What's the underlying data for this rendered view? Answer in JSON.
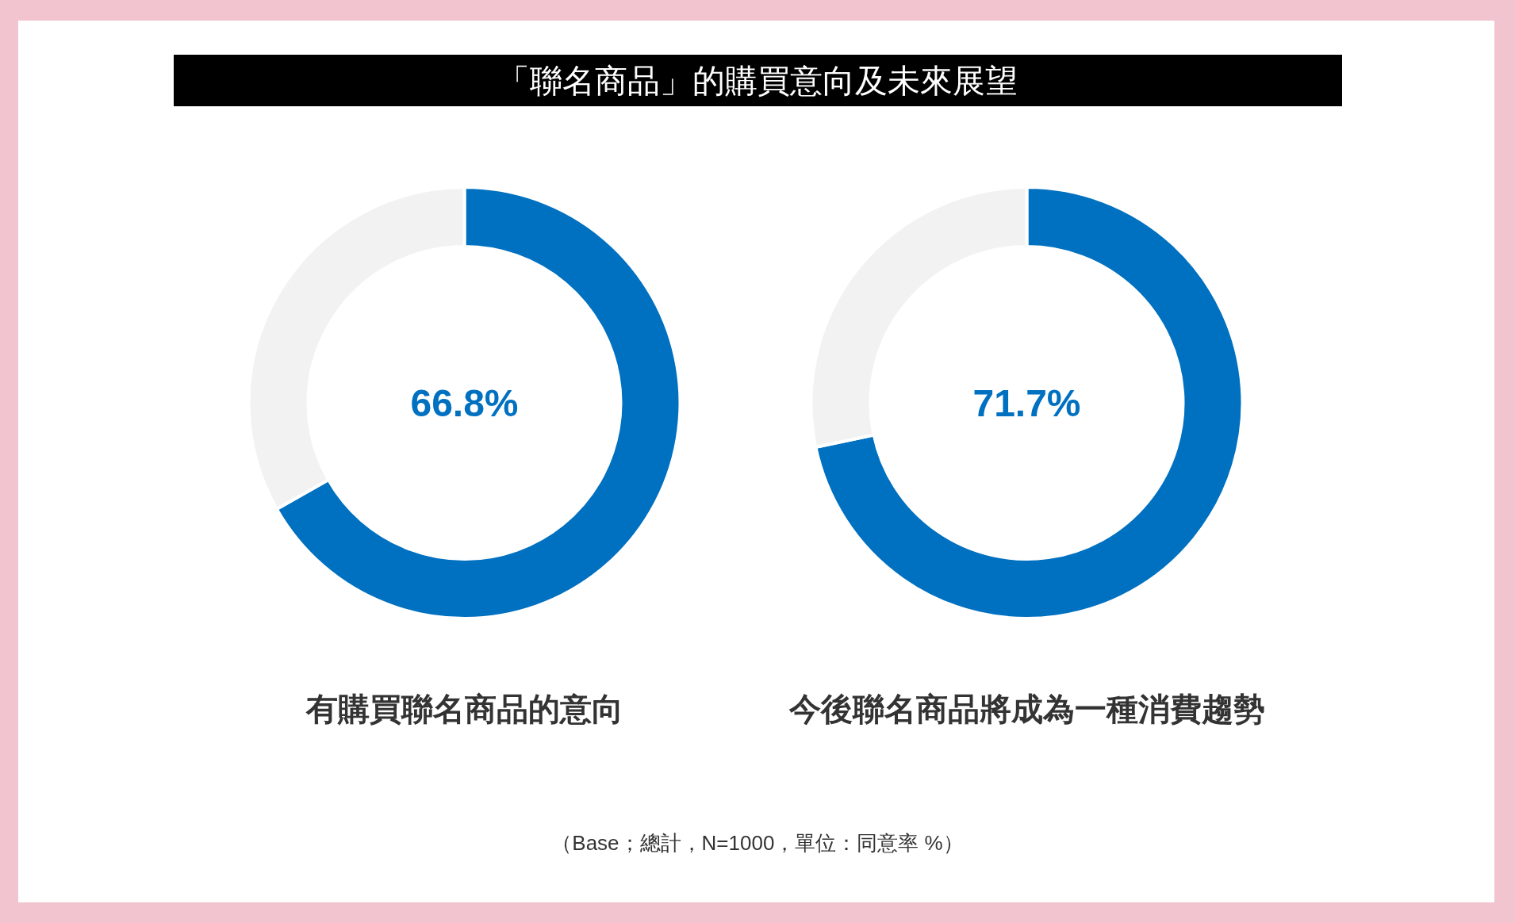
{
  "chart_data": [
    {
      "type": "other",
      "title": "「聯名商品」的購買意向及未來展望",
      "annotations": [
        "（Base；總計，N=1000，單位：同意率 %）"
      ]
    },
    {
      "type": "donut",
      "xlabel": "有購買聯名商品的意向",
      "categories": [
        null,
        null
      ],
      "values": [
        66.8,
        33.2
      ],
      "colors": [
        "#0070c0",
        "#f2f2f2"
      ],
      "annotations": [
        "66.8%"
      ]
    },
    {
      "type": "donut",
      "xlabel": "今後聯名商品將成為一種消費趨勢",
      "categories": [
        null,
        null
      ],
      "values": [
        71.7,
        28.3
      ],
      "colors": [
        "#0070c0",
        "#f2f2f2"
      ],
      "annotations": [
        "71.7%"
      ]
    }
  ]
}
